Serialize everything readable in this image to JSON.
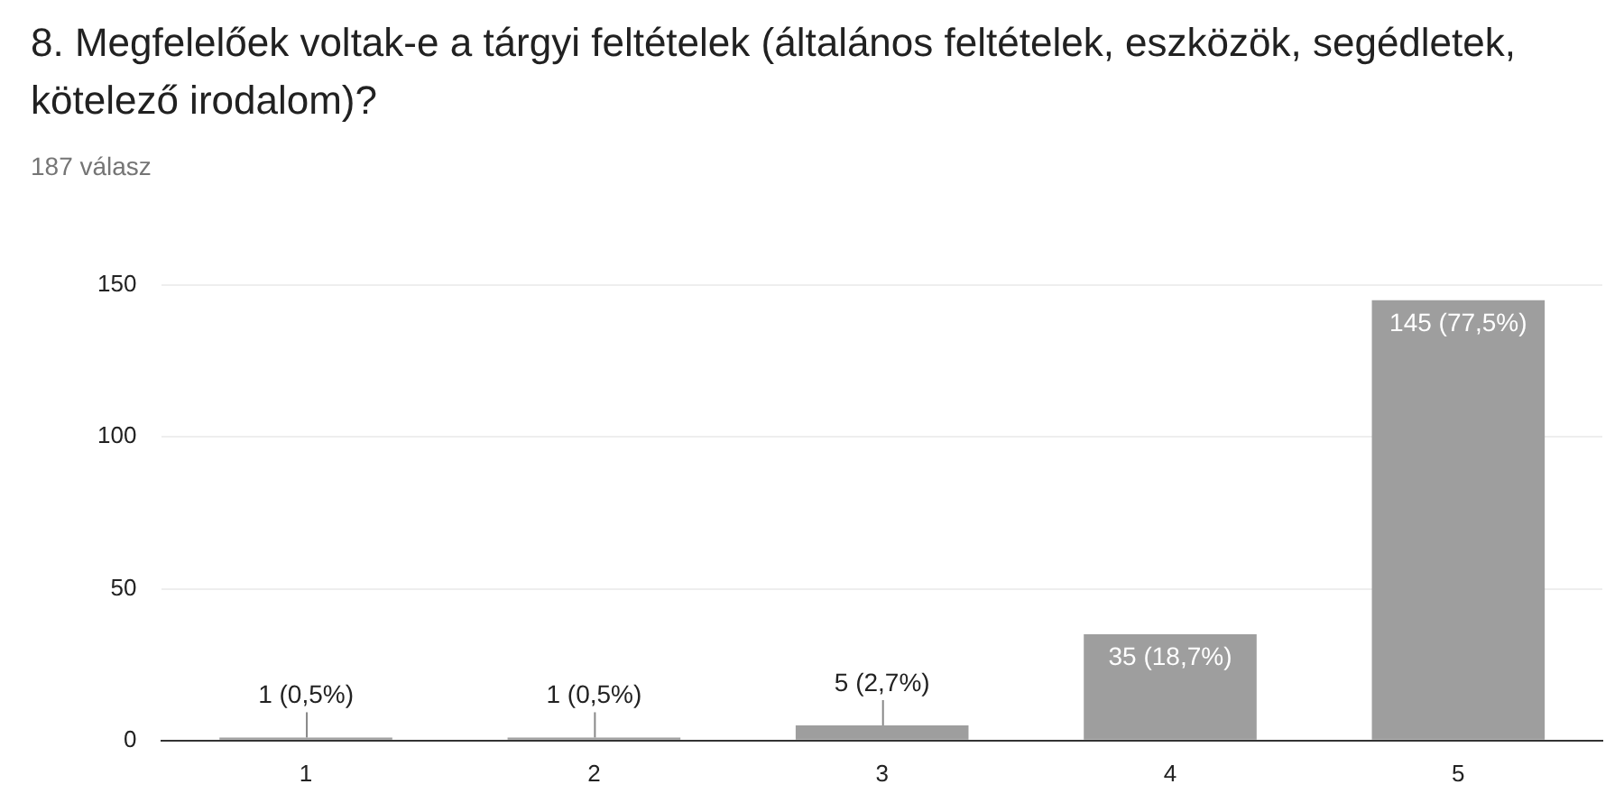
{
  "chart_data": {
    "type": "bar",
    "title": "8. Megfelelőek voltak-e a tárgyi feltételek (általános feltételek, eszközök, segédletek, kötelező irodalom)?",
    "subtitle": "187 válasz",
    "categories": [
      "1",
      "2",
      "3",
      "4",
      "5"
    ],
    "values": [
      1,
      1,
      5,
      35,
      145
    ],
    "value_labels": [
      "1 (0,5%)",
      "1 (0,5%)",
      "5 (2,7%)",
      "35 (18,7%)",
      "145 (77,5%)"
    ],
    "color": "#9e9e9e",
    "ylim": [
      0,
      150
    ],
    "yticks": [
      0,
      50,
      100,
      150
    ],
    "grid": "y",
    "legend": false
  }
}
